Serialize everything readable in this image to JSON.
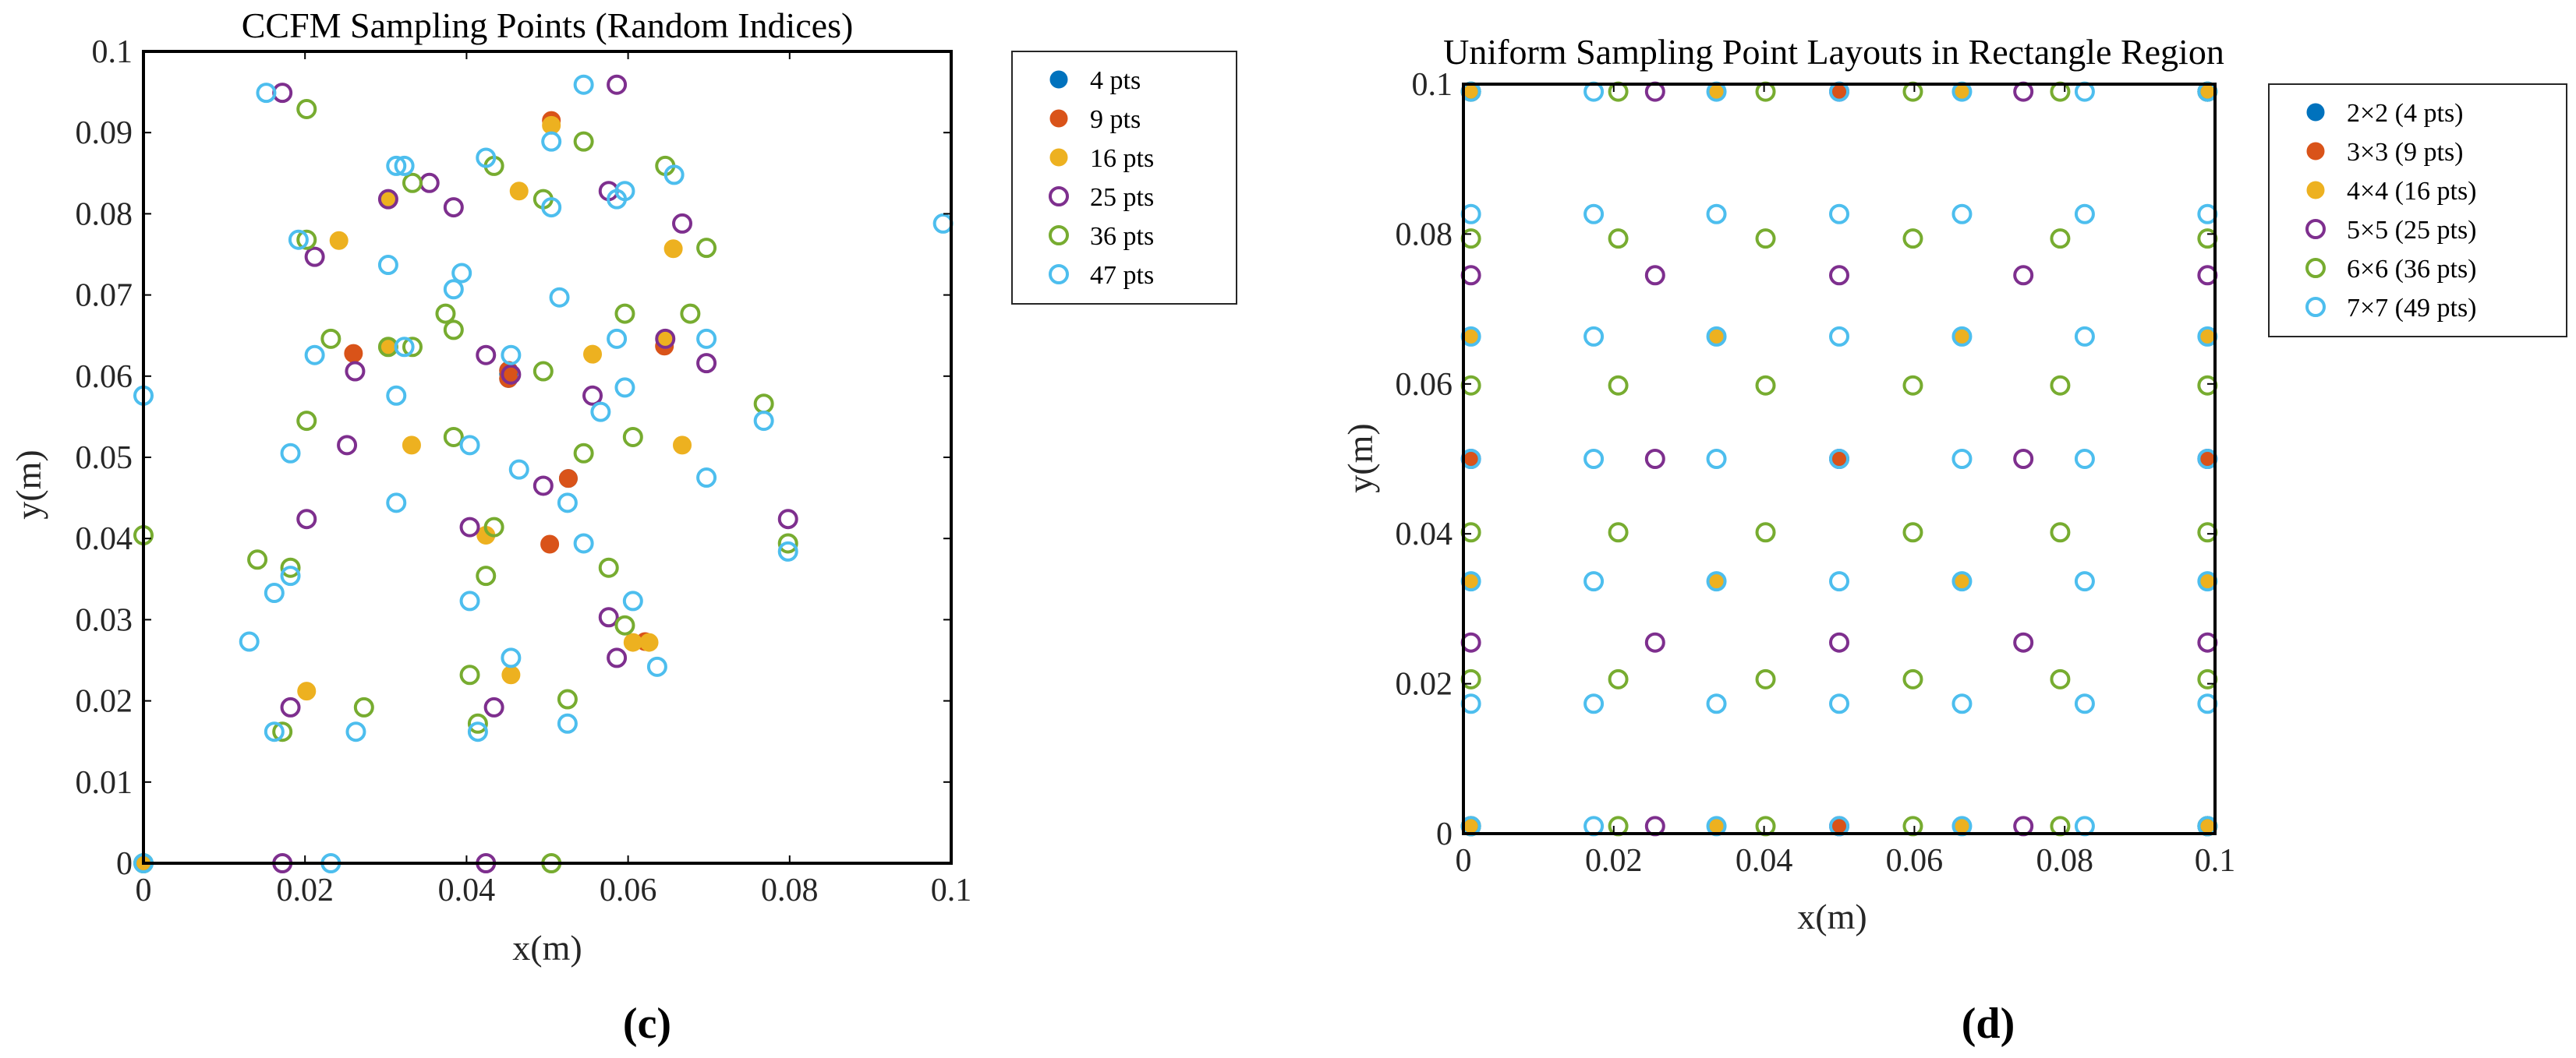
{
  "colors": {
    "blue": "#0072BD",
    "red": "#D95319",
    "yellow": "#EDB120",
    "purple": "#7E2F8E",
    "green": "#77AC30",
    "cyan": "#4DBEEE"
  },
  "panels": [
    {
      "panel_label_open": "(",
      "panel_label_letter": "c",
      "panel_label_close": ")"
    },
    {
      "panel_label_open": "(",
      "panel_label_letter": "d",
      "panel_label_close": ")"
    }
  ],
  "chart_data": [
    {
      "type": "scatter",
      "title": "CCFM Sampling Points (Random Indices)",
      "xlabel": "x(m)",
      "ylabel": "y(m)",
      "xlim": [
        0,
        0.1
      ],
      "ylim": [
        0,
        0.1
      ],
      "xticks": [
        "0",
        "0.02",
        "0.04",
        "0.06",
        "0.08",
        "0.1"
      ],
      "yticks": [
        "0",
        "0.01",
        "0.02",
        "0.03",
        "0.04",
        "0.05",
        "0.06",
        "0.07",
        "0.08",
        "0.09",
        "0.1"
      ],
      "grid": false,
      "legend_position": "outside-top-right",
      "series": [
        {
          "name": "4 pts",
          "color": "blue",
          "marker": "filled",
          "points": [
            [
              0.0452,
              0.0607
            ],
            [
              0.0452,
              0.0597
            ],
            [
              0.0526,
              0.0474
            ],
            [
              0.0452,
              0.0603
            ]
          ]
        },
        {
          "name": "9 pts",
          "color": "red",
          "marker": "filled",
          "points": [
            [
              0,
              0
            ],
            [
              0.026,
              0.0628
            ],
            [
              0.0645,
              0.0637
            ],
            [
              0.0503,
              0.0393
            ],
            [
              0.0621,
              0.0273
            ],
            [
              0.0452,
              0.0607
            ],
            [
              0.0526,
              0.0474
            ],
            [
              0.0452,
              0.0597
            ],
            [
              0.0505,
              0.0915
            ]
          ]
        },
        {
          "name": "16 pts",
          "color": "yellow",
          "marker": "filled",
          "points": [
            [
              0,
              0
            ],
            [
              0.0242,
              0.0767
            ],
            [
              0.0303,
              0.0818
            ],
            [
              0.0303,
              0.0636
            ],
            [
              0.0332,
              0.0515
            ],
            [
              0.0505,
              0.0909
            ],
            [
              0.0465,
              0.0828
            ],
            [
              0.0556,
              0.0627
            ],
            [
              0.0656,
              0.0757
            ],
            [
              0.0646,
              0.0645
            ],
            [
              0.0667,
              0.0515
            ],
            [
              0.0424,
              0.0404
            ],
            [
              0.0455,
              0.0232
            ],
            [
              0.0202,
              0.0212
            ],
            [
              0.0606,
              0.0272
            ],
            [
              0.0626,
              0.0272
            ]
          ]
        },
        {
          "name": "25 pts",
          "color": "purple",
          "marker": "open",
          "points": [
            [
              0.0172,
              0.0949
            ],
            [
              0.0586,
              0.0959
            ],
            [
              0.0212,
              0.0747
            ],
            [
              0.0354,
              0.0838
            ],
            [
              0.0384,
              0.0808
            ],
            [
              0.0576,
              0.0828
            ],
            [
              0.0667,
              0.0788
            ],
            [
              0.0262,
              0.0606
            ],
            [
              0.0424,
              0.0626
            ],
            [
              0.0556,
              0.0576
            ],
            [
              0.0697,
              0.0616
            ],
            [
              0.0252,
              0.0515
            ],
            [
              0.0495,
              0.0465
            ],
            [
              0.0202,
              0.0424
            ],
            [
              0.0404,
              0.0414
            ],
            [
              0.0798,
              0.0424
            ],
            [
              0.0576,
              0.0303
            ],
            [
              0.0586,
              0.0253
            ],
            [
              0.0182,
              0.0192
            ],
            [
              0.0434,
              0.0192
            ],
            [
              0.0172,
              0
            ],
            [
              0.0424,
              0
            ],
            [
              0.0646,
              0.0646
            ],
            [
              0.0303,
              0.0818
            ],
            [
              0.0455,
              0.0602
            ]
          ]
        },
        {
          "name": "36 pts",
          "color": "green",
          "marker": "open",
          "points": [
            [
              0.0202,
              0.0929
            ],
            [
              0.0545,
              0.0889
            ],
            [
              0.0646,
              0.0859
            ],
            [
              0.0434,
              0.0859
            ],
            [
              0.0495,
              0.0818
            ],
            [
              0.0333,
              0.0838
            ],
            [
              0.0202,
              0.0768
            ],
            [
              0.0697,
              0.0758
            ],
            [
              0.0374,
              0.0677
            ],
            [
              0.0384,
              0.0657
            ],
            [
              0.0596,
              0.0677
            ],
            [
              0.0677,
              0.0677
            ],
            [
              0.0232,
              0.0646
            ],
            [
              0.0333,
              0.0636
            ],
            [
              0.0495,
              0.0606
            ],
            [
              0.0202,
              0.0545
            ],
            [
              0.0768,
              0.0566
            ],
            [
              0.0606,
              0.0525
            ],
            [
              0.0384,
              0.0525
            ],
            [
              0.0545,
              0.0505
            ],
            [
              0.0141,
              0.0374
            ],
            [
              0.0182,
              0.0364
            ],
            [
              0.0424,
              0.0354
            ],
            [
              0.0434,
              0.0414
            ],
            [
              0.0576,
              0.0364
            ],
            [
              0.0798,
              0.0394
            ],
            [
              0.0596,
              0.0293
            ],
            [
              0.0404,
              0.0232
            ],
            [
              0.0525,
              0.0202
            ],
            [
              0.0273,
              0.0192
            ],
            [
              0.0172,
              0.0162
            ],
            [
              0.0414,
              0.0172
            ],
            [
              0,
              0.0404
            ],
            [
              0.0505,
              0
            ],
            [
              0,
              0
            ],
            [
              0.0303,
              0.0636
            ]
          ]
        },
        {
          "name": "47 pts",
          "color": "cyan",
          "marker": "open",
          "points": [
            [
              0.0152,
              0.0949
            ],
            [
              0.0545,
              0.0959
            ],
            [
              0.0313,
              0.0859
            ],
            [
              0.0323,
              0.0859
            ],
            [
              0.0424,
              0.0869
            ],
            [
              0.0505,
              0.0889
            ],
            [
              0.0505,
              0.0808
            ],
            [
              0.0596,
              0.0828
            ],
            [
              0.0586,
              0.0818
            ],
            [
              0.0657,
              0.0848
            ],
            [
              0.0192,
              0.0768
            ],
            [
              0.0303,
              0.0737
            ],
            [
              0.0394,
              0.0727
            ],
            [
              0.0384,
              0.0707
            ],
            [
              0.0515,
              0.0697
            ],
            [
              0.0323,
              0.0636
            ],
            [
              0.0212,
              0.0626
            ],
            [
              0.0455,
              0.0626
            ],
            [
              0.0586,
              0.0646
            ],
            [
              0.0697,
              0.0646
            ],
            [
              0.0313,
              0.0576
            ],
            [
              0.0596,
              0.0586
            ],
            [
              0.0566,
              0.0556
            ],
            [
              0.0768,
              0.0545
            ],
            [
              0.0182,
              0.0505
            ],
            [
              0.0404,
              0.0515
            ],
            [
              0.0465,
              0.0485
            ],
            [
              0.0313,
              0.0444
            ],
            [
              0.0525,
              0.0444
            ],
            [
              0.0697,
              0.0475
            ],
            [
              0.0545,
              0.0394
            ],
            [
              0.0798,
              0.0384
            ],
            [
              0.0162,
              0.0333
            ],
            [
              0.0182,
              0.0354
            ],
            [
              0.0404,
              0.0323
            ],
            [
              0.0606,
              0.0323
            ],
            [
              0.0131,
              0.0273
            ],
            [
              0.0455,
              0.0253
            ],
            [
              0.0636,
              0.0242
            ],
            [
              0.0162,
              0.0162
            ],
            [
              0.0263,
              0.0162
            ],
            [
              0.0414,
              0.0162
            ],
            [
              0.0525,
              0.0172
            ],
            [
              0,
              0.0576
            ],
            [
              0.0232,
              0
            ],
            [
              0.099,
              0.0788
            ],
            [
              0,
              0
            ]
          ]
        }
      ]
    },
    {
      "type": "scatter",
      "title": "Uniform Sampling Point Layouts in Rectangle Region",
      "xlabel": "x(m)",
      "ylabel": "y(m)",
      "xlim": [
        0,
        0.1
      ],
      "ylim": [
        0,
        0.1
      ],
      "xticks": [
        "0",
        "0.02",
        "0.04",
        "0.06",
        "0.08",
        "0.1"
      ],
      "yticks": [
        "0",
        "0.02",
        "0.04",
        "0.06",
        "0.08",
        "0.1"
      ],
      "grid": false,
      "legend_position": "outside-top-right",
      "series": [
        {
          "name": "2×2 (4 pts)",
          "color": "blue",
          "marker": "filled",
          "grid_n": 2,
          "range": [
            0.001,
            0.099
          ]
        },
        {
          "name": "3×3 (9 pts)",
          "color": "red",
          "marker": "filled",
          "grid_n": 3,
          "range": [
            0.001,
            0.099
          ]
        },
        {
          "name": "4×4 (16 pts)",
          "color": "yellow",
          "marker": "filled",
          "grid_n": 4,
          "range": [
            0.001,
            0.099
          ]
        },
        {
          "name": "5×5 (25 pts)",
          "color": "purple",
          "marker": "open",
          "grid_n": 5,
          "range": [
            0.001,
            0.099
          ]
        },
        {
          "name": "6×6 (36 pts)",
          "color": "green",
          "marker": "open",
          "grid_n": 6,
          "range": [
            0.001,
            0.099
          ]
        },
        {
          "name": "7×7 (49 pts)",
          "color": "cyan",
          "marker": "open",
          "grid_n": 7,
          "range": [
            0.001,
            0.099
          ]
        }
      ]
    }
  ]
}
